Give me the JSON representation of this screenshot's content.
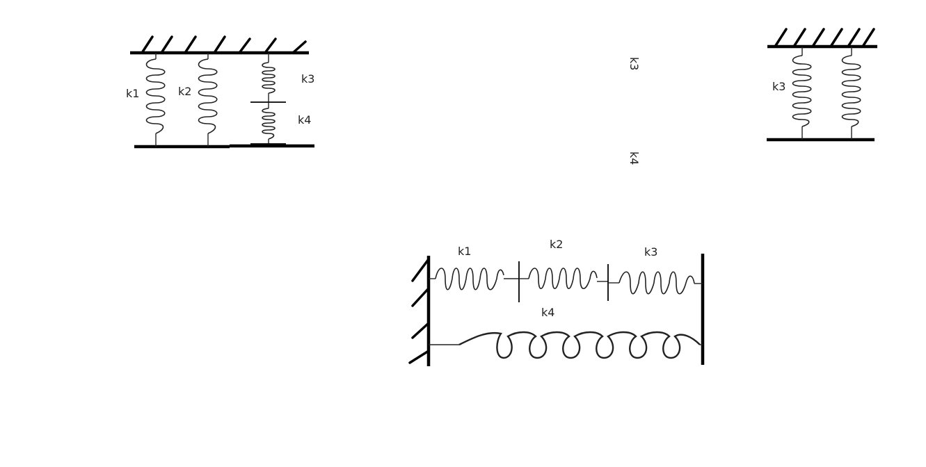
{
  "colors": {
    "ink": "#000000",
    "label": "#222222",
    "background": "#ffffff"
  },
  "diagram_1": {
    "label_k1": "k1",
    "label_k2": "k2",
    "label_k3": "k3",
    "label_k4": "k4"
  },
  "rotated_labels": {
    "label_k3": "k3",
    "label_k4": "k4"
  },
  "diagram_2": {
    "label_k3": "k3"
  },
  "diagram_3": {
    "label_k1": "k1",
    "label_k2": "k2",
    "label_k3": "k3",
    "label_k4": "k4"
  }
}
